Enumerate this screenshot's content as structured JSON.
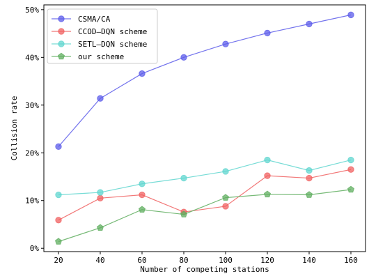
{
  "chart_data": {
    "type": "line",
    "title": "",
    "xlabel": "Number of competing stations",
    "ylabel": "Collision rate",
    "x": [
      20,
      40,
      60,
      80,
      100,
      120,
      140,
      160
    ],
    "xlim": [
      13,
      167
    ],
    "ylim": [
      -0.007,
      0.51
    ],
    "yticks": [
      0,
      0.1,
      0.2,
      0.3,
      0.4,
      0.5
    ],
    "ytick_labels": [
      "0%",
      "10%",
      "20%",
      "30%",
      "40%",
      "50%"
    ],
    "xtick_labels": [
      "20",
      "40",
      "60",
      "80",
      "100",
      "120",
      "140",
      "160"
    ],
    "grid": false,
    "legend_position": "top-left",
    "series": [
      {
        "name": "CSMA/CA",
        "color": "#5b5bea",
        "marker": "circle",
        "values": [
          0.213,
          0.314,
          0.366,
          0.4,
          0.428,
          0.451,
          0.47,
          0.489
        ]
      },
      {
        "name": "CCOD—DQN scheme",
        "color": "#f06060",
        "marker": "circle",
        "values": [
          0.059,
          0.105,
          0.112,
          0.076,
          0.088,
          0.152,
          0.147,
          0.165
        ]
      },
      {
        "name": "SETL—DQN scheme",
        "color": "#5fd6cf",
        "marker": "circle",
        "values": [
          0.112,
          0.117,
          0.135,
          0.147,
          0.161,
          0.185,
          0.163,
          0.185
        ]
      },
      {
        "name": "our scheme",
        "color": "#5fae5f",
        "marker": "pentagon",
        "values": [
          0.014,
          0.043,
          0.081,
          0.071,
          0.106,
          0.113,
          0.112,
          0.123
        ]
      }
    ]
  }
}
